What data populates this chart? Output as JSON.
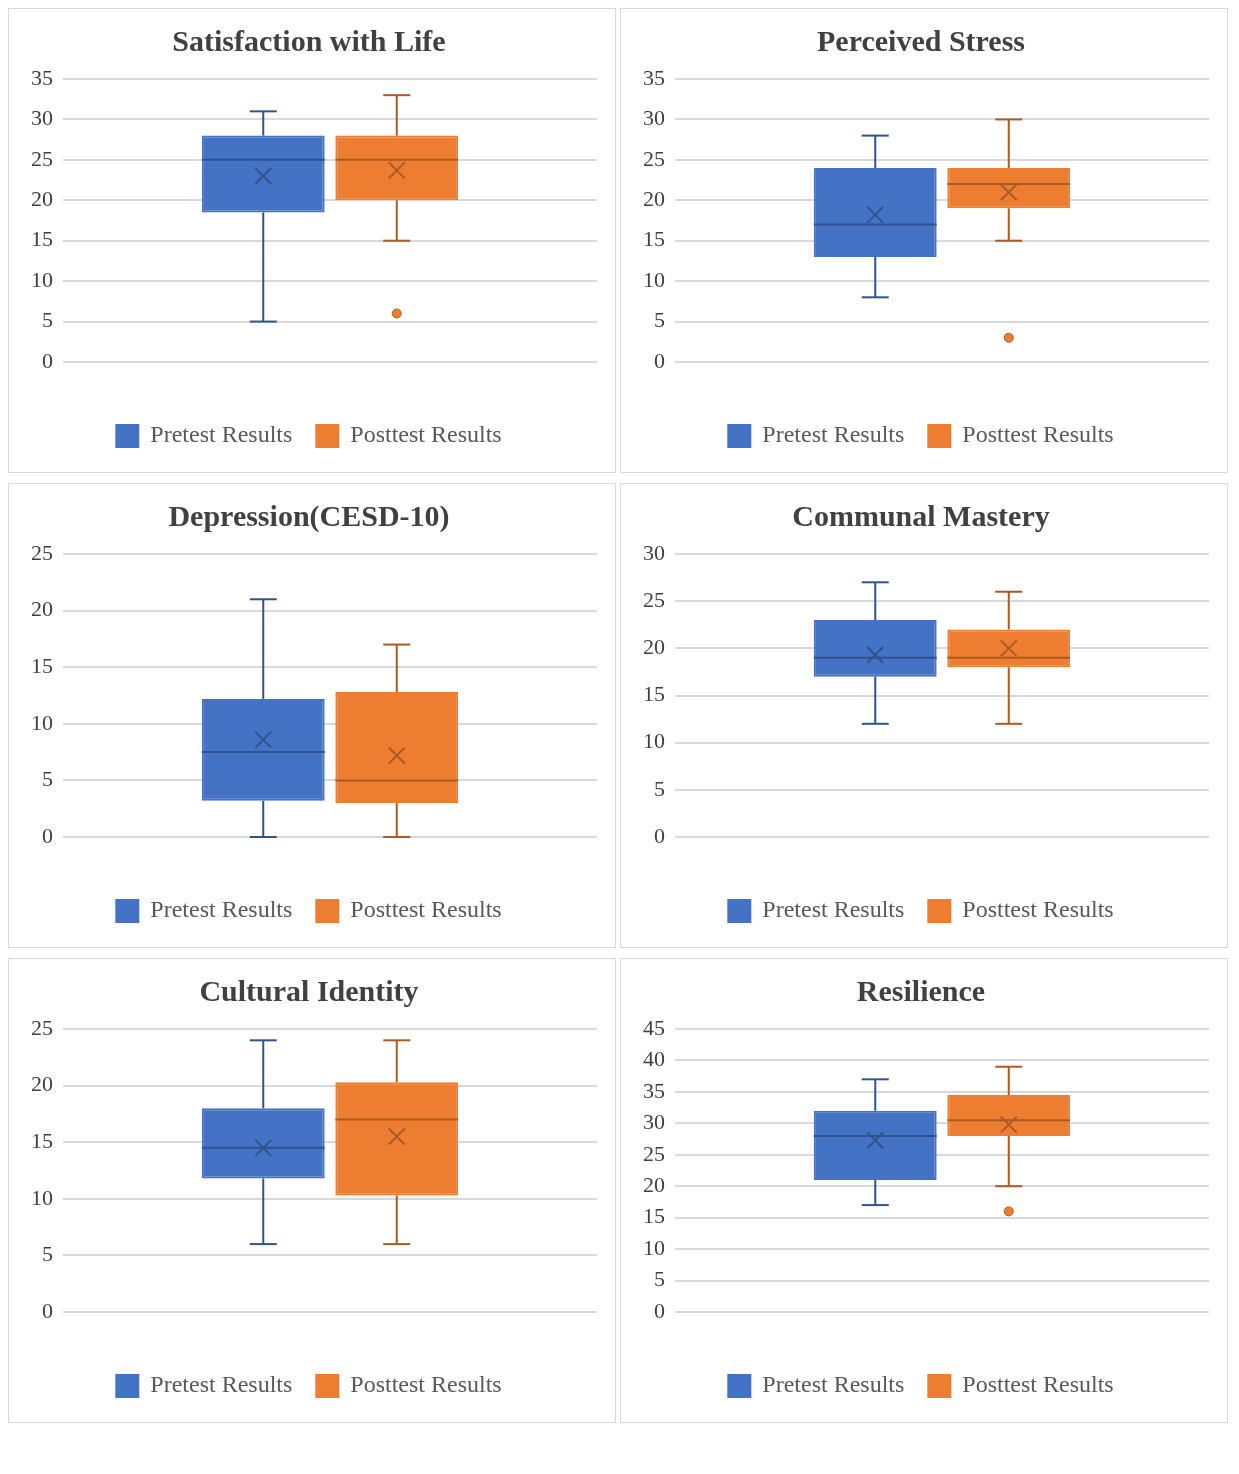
{
  "chart_data": [
    {
      "type": "box",
      "title": "Satisfaction with Life",
      "categories": [
        null
      ],
      "ylim": [
        0,
        35
      ],
      "yticks": [
        0,
        5,
        10,
        15,
        20,
        25,
        30,
        35
      ],
      "grid": "y",
      "legend": "bottom",
      "series": [
        {
          "name": "Pretest Results",
          "color": "#4472c4",
          "boxes": [
            {
              "low": 5,
              "q1": 18.5,
              "median": 25,
              "q3": 28,
              "high": 31,
              "mean": 23
            }
          ]
        },
        {
          "name": "Posttest Results",
          "color": "#ed7d31",
          "boxes": [
            {
              "low": 15,
              "q1": 20,
              "median": 25,
              "q3": 28,
              "high": 33,
              "mean": 23.7,
              "outliers": [
                6
              ]
            }
          ]
        }
      ]
    },
    {
      "type": "box",
      "title": "Perceived Stress",
      "categories": [
        null
      ],
      "ylim": [
        0,
        35
      ],
      "yticks": [
        0,
        5,
        10,
        15,
        20,
        25,
        30,
        35
      ],
      "grid": "y",
      "legend": "bottom",
      "series": [
        {
          "name": "Pretest Results",
          "color": "#4472c4",
          "boxes": [
            {
              "low": 8,
              "q1": 13,
              "median": 17,
              "q3": 24,
              "high": 28,
              "mean": 18.2
            }
          ]
        },
        {
          "name": "Posttest Results",
          "color": "#ed7d31",
          "boxes": [
            {
              "low": 15,
              "q1": 19,
              "median": 22,
              "q3": 24,
              "high": 30,
              "mean": 21,
              "outliers": [
                3
              ]
            }
          ]
        }
      ]
    },
    {
      "type": "box",
      "title": "Depression(CESD-10)",
      "categories": [
        null
      ],
      "ylim": [
        0,
        25
      ],
      "yticks": [
        0,
        5,
        10,
        15,
        20,
        25
      ],
      "grid": "y",
      "legend": "bottom",
      "series": [
        {
          "name": "Pretest Results",
          "color": "#4472c4",
          "boxes": [
            {
              "low": 0,
              "q1": 3.2,
              "median": 7.5,
              "q3": 12.2,
              "high": 21,
              "mean": 8.6
            }
          ]
        },
        {
          "name": "Posttest Results",
          "color": "#ed7d31",
          "boxes": [
            {
              "low": 0,
              "q1": 3,
              "median": 5,
              "q3": 12.8,
              "high": 17,
              "mean": 7.2
            }
          ]
        }
      ]
    },
    {
      "type": "box",
      "title": "Communal Mastery",
      "categories": [
        null
      ],
      "ylim": [
        0,
        30
      ],
      "yticks": [
        0,
        5,
        10,
        15,
        20,
        25,
        30
      ],
      "grid": "y",
      "legend": "bottom",
      "series": [
        {
          "name": "Pretest Results",
          "color": "#4472c4",
          "boxes": [
            {
              "low": 12,
              "q1": 17,
              "median": 19,
              "q3": 23,
              "high": 27,
              "mean": 19.3
            }
          ]
        },
        {
          "name": "Posttest Results",
          "color": "#ed7d31",
          "boxes": [
            {
              "low": 12,
              "q1": 18,
              "median": 19,
              "q3": 22,
              "high": 26,
              "mean": 20
            }
          ]
        }
      ]
    },
    {
      "type": "box",
      "title": "Cultural Identity",
      "categories": [
        null
      ],
      "ylim": [
        0,
        25
      ],
      "yticks": [
        0,
        5,
        10,
        15,
        20,
        25
      ],
      "grid": "y",
      "legend": "bottom",
      "series": [
        {
          "name": "Pretest Results",
          "color": "#4472c4",
          "boxes": [
            {
              "low": 6,
              "q1": 11.8,
              "median": 14.5,
              "q3": 18,
              "high": 24,
              "mean": 14.5
            }
          ]
        },
        {
          "name": "Posttest Results",
          "color": "#ed7d31",
          "boxes": [
            {
              "low": 6,
              "q1": 10.3,
              "median": 17,
              "q3": 20.3,
              "high": 24,
              "mean": 15.5
            }
          ]
        }
      ]
    },
    {
      "type": "box",
      "title": "Resilience",
      "categories": [
        null
      ],
      "ylim": [
        0,
        45
      ],
      "yticks": [
        0,
        5,
        10,
        15,
        20,
        25,
        30,
        35,
        40,
        45
      ],
      "grid": "y",
      "legend": "bottom",
      "series": [
        {
          "name": "Pretest Results",
          "color": "#4472c4",
          "boxes": [
            {
              "low": 17,
              "q1": 21,
              "median": 28,
              "q3": 32,
              "high": 37,
              "mean": 27.3
            }
          ]
        },
        {
          "name": "Posttest Results",
          "color": "#ed7d31",
          "boxes": [
            {
              "low": 20,
              "q1": 28,
              "median": 30.5,
              "q3": 34.5,
              "high": 39,
              "mean": 29.8,
              "outliers": [
                16
              ]
            }
          ]
        }
      ]
    }
  ]
}
